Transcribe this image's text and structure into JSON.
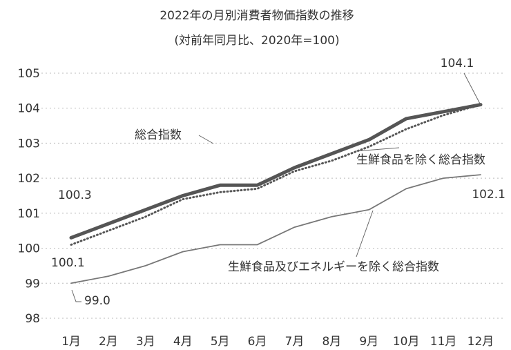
{
  "chart_data": {
    "type": "line",
    "title": "2022年の月別消費者物価指数の推移",
    "subtitle": "(対前年同月比、2020年=100)",
    "xlabel": "",
    "ylabel": "",
    "categories": [
      "1月",
      "2月",
      "3月",
      "4月",
      "5月",
      "6月",
      "7月",
      "8月",
      "9月",
      "10月",
      "11月",
      "12月"
    ],
    "ylim": [
      98,
      105
    ],
    "yticks": [
      "98",
      "99",
      "100",
      "101",
      "102",
      "103",
      "104",
      "105"
    ],
    "grid": true,
    "legend": "inline labels",
    "series": [
      {
        "name": "総合指数",
        "values": [
          100.3,
          100.7,
          101.1,
          101.5,
          101.8,
          101.8,
          102.3,
          102.7,
          103.1,
          103.7,
          103.9,
          104.1
        ],
        "color": "#555555",
        "style": "thick"
      },
      {
        "name": "生鮮食品を除く総合指数",
        "values": [
          100.1,
          100.5,
          100.9,
          101.4,
          101.6,
          101.7,
          102.2,
          102.5,
          102.9,
          103.4,
          103.8,
          104.1
        ],
        "color": "#555555",
        "style": "dotted"
      },
      {
        "name": "生鮮食品及びエネルギーを除く総合指数",
        "values": [
          99.0,
          99.2,
          99.5,
          99.9,
          100.1,
          100.1,
          100.6,
          100.9,
          101.1,
          101.7,
          102.0,
          102.1
        ],
        "color": "#777777",
        "style": "thin"
      }
    ],
    "annotations": [
      {
        "text": "100.3",
        "series": 0,
        "index": 0
      },
      {
        "text": "100.1",
        "series": 1,
        "index": 0
      },
      {
        "text": "99.0",
        "series": 2,
        "index": 0
      },
      {
        "text": "104.1",
        "series": 0,
        "index": 11
      },
      {
        "text": "102.1",
        "series": 2,
        "index": 11
      }
    ]
  }
}
